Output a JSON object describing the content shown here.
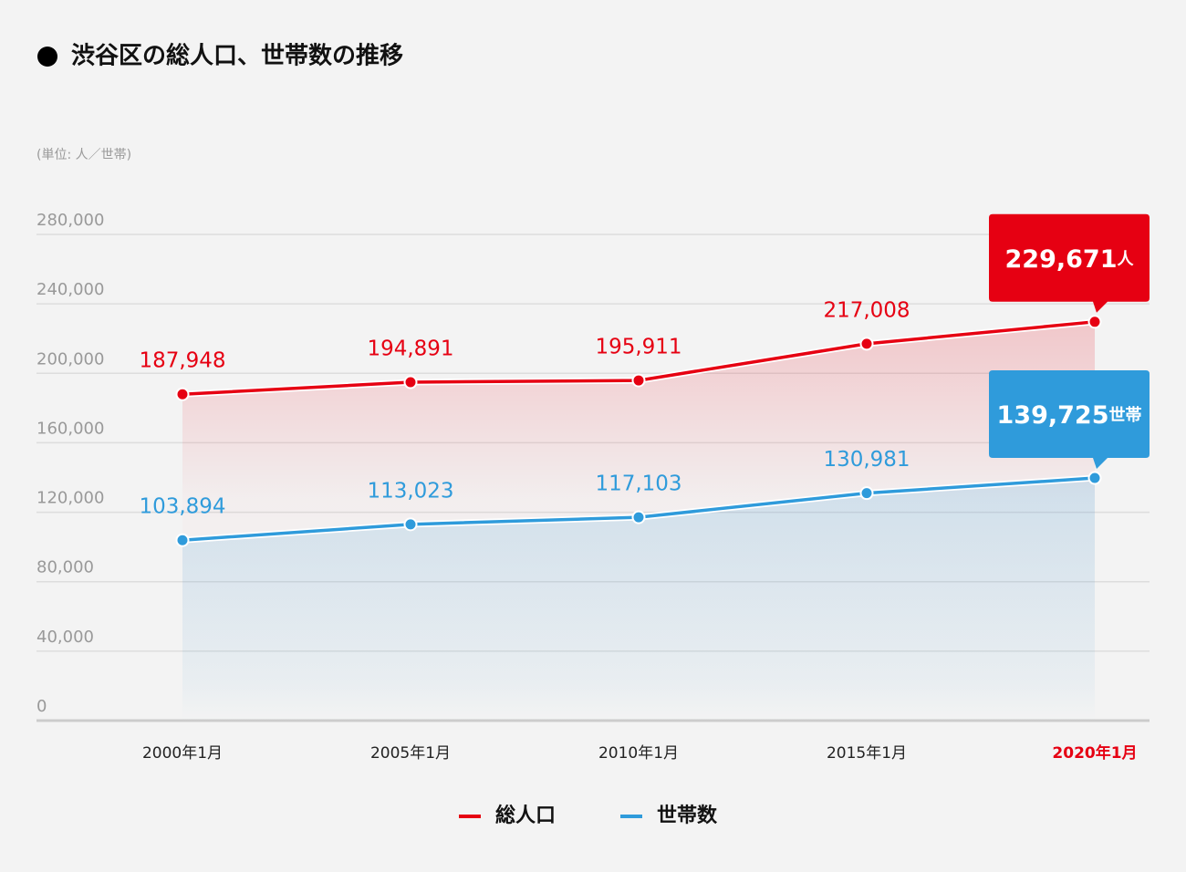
{
  "chart_data": {
    "type": "line",
    "title": "渋谷区の総人口、世帯数の推移",
    "unit_label": "(単位: 人／世帯)",
    "categories": [
      "2000年1月",
      "2005年1月",
      "2010年1月",
      "2015年1月",
      "2020年1月"
    ],
    "series": [
      {
        "name": "総人口",
        "color": "#e60012",
        "unit": "人",
        "values": [
          187948,
          194891,
          195911,
          217008,
          229671
        ],
        "value_labels": [
          "187,948",
          "194,891",
          "195,911",
          "217,008",
          "229,671"
        ]
      },
      {
        "name": "世帯数",
        "color": "#2f9bdb",
        "unit": "世帯",
        "values": [
          103894,
          113023,
          117103,
          130981,
          139725
        ],
        "value_labels": [
          "103,894",
          "113,023",
          "117,103",
          "130,981",
          "139,725"
        ]
      }
    ],
    "ylim": [
      0,
      280000
    ],
    "yticks": [
      0,
      {
        "value": 40000,
        "label": "40,000"
      },
      {
        "value": 80000,
        "label": "80,000"
      },
      {
        "value": 120000,
        "label": "120,000"
      },
      {
        "value": 160000,
        "label": "160,000"
      },
      {
        "value": 200000,
        "label": "200,000"
      },
      {
        "value": 240000,
        "label": "240,000"
      },
      {
        "value": 280000,
        "label": "280,000"
      }
    ],
    "grid": true,
    "legend": "bottom"
  }
}
